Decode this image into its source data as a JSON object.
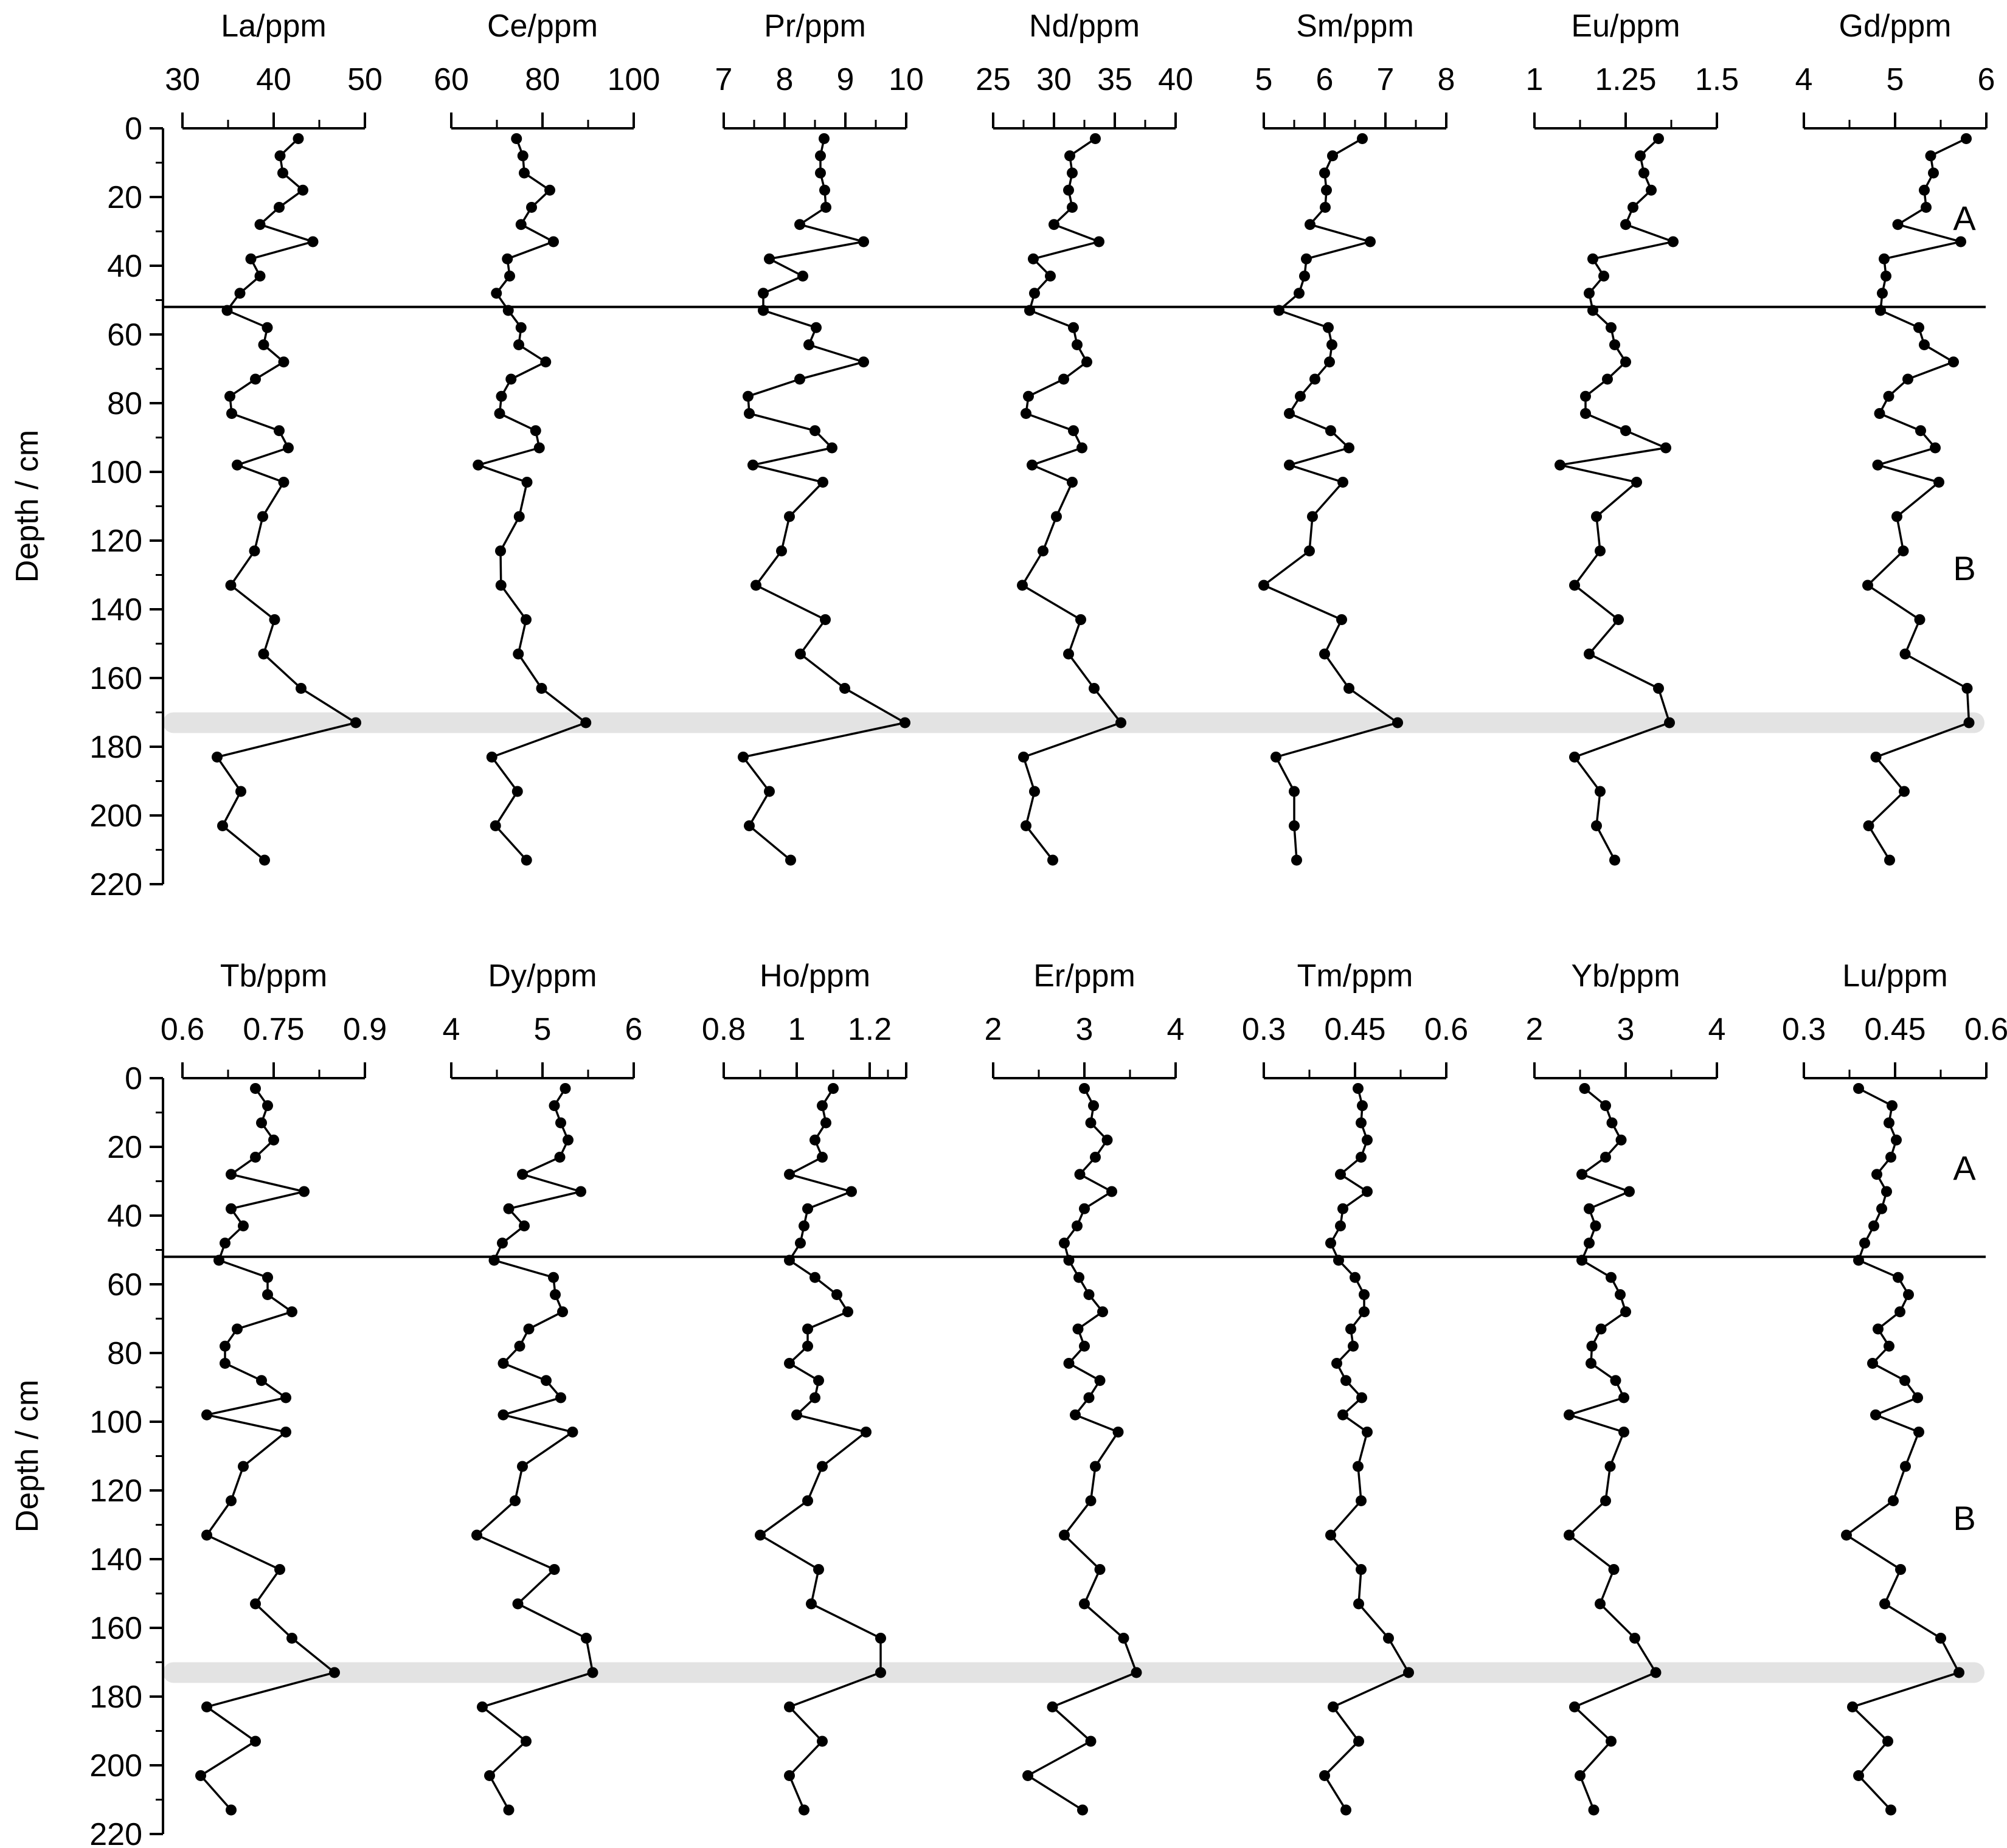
{
  "chart_data": [
    {
      "type": "line",
      "panel": "top",
      "depth_axis": {
        "label": "Depth / cm",
        "ticks": [
          "0",
          "20",
          "40",
          "60",
          "80",
          "100",
          "120",
          "140",
          "160",
          "180",
          "200",
          "220"
        ],
        "range": [
          0,
          220
        ],
        "inverted": true
      },
      "depths": [
        3,
        8,
        13,
        18,
        23,
        28,
        33,
        38,
        43,
        48,
        53,
        58,
        63,
        68,
        73,
        78,
        83,
        88,
        93,
        98,
        103,
        113,
        123,
        133,
        143,
        153,
        163,
        173,
        183,
        193,
        203,
        213
      ],
      "zones": [
        {
          "label": "A",
          "depth_range": [
            0,
            52
          ]
        },
        {
          "label": "B",
          "depth_range": [
            52,
            220
          ]
        }
      ],
      "zone_boundary_depth": 52,
      "highlight_band_depth": 173,
      "series": [
        {
          "name": "La/ppm",
          "xlim": [
            30,
            50
          ],
          "ticks": [
            "30",
            "40",
            "50"
          ],
          "values": [
            42.7,
            40.7,
            41.0,
            43.2,
            40.6,
            38.5,
            44.3,
            37.5,
            38.5,
            36.3,
            34.9,
            39.3,
            38.9,
            41.1,
            38.0,
            35.2,
            35.4,
            40.6,
            41.6,
            36.0,
            41.1,
            38.8,
            37.9,
            35.3,
            40.1,
            38.9,
            43.0,
            49.0,
            33.8,
            36.4,
            34.4,
            39.0
          ]
        },
        {
          "name": "Ce/ppm",
          "xlim": [
            60,
            100
          ],
          "ticks": [
            "60",
            "80",
            "100"
          ],
          "values": [
            74.3,
            75.7,
            76.0,
            81.6,
            77.6,
            75.3,
            82.4,
            72.3,
            72.8,
            69.9,
            72.5,
            75.3,
            74.8,
            80.7,
            73.1,
            71.0,
            70.6,
            78.5,
            79.3,
            65.9,
            76.6,
            74.9,
            70.8,
            70.9,
            76.4,
            74.7,
            79.8,
            89.5,
            68.9,
            74.5,
            69.7,
            76.5
          ]
        },
        {
          "name": "Pr/ppm",
          "xlim": [
            7,
            10
          ],
          "ticks": [
            "7",
            "8",
            "9",
            "10"
          ],
          "values": [
            8.65,
            8.59,
            8.59,
            8.66,
            8.68,
            8.25,
            9.3,
            7.75,
            8.3,
            7.65,
            7.65,
            8.52,
            8.4,
            9.3,
            8.25,
            7.4,
            7.42,
            8.5,
            8.78,
            7.48,
            8.63,
            8.08,
            7.95,
            7.53,
            8.67,
            8.26,
            8.99,
            9.98,
            7.32,
            7.75,
            7.42,
            8.1
          ]
        },
        {
          "name": "Nd/ppm",
          "xlim": [
            25,
            40
          ],
          "ticks": [
            "25",
            "30",
            "35",
            "40"
          ],
          "values": [
            33.4,
            31.3,
            31.5,
            31.2,
            31.5,
            30.0,
            33.7,
            28.3,
            29.7,
            28.4,
            28.0,
            31.6,
            31.9,
            32.7,
            30.8,
            27.9,
            27.7,
            31.6,
            32.3,
            28.2,
            31.5,
            30.2,
            29.1,
            27.4,
            32.2,
            31.2,
            33.3,
            35.5,
            27.5,
            28.4,
            27.7,
            29.9
          ]
        },
        {
          "name": "Sm/ppm",
          "xlim": [
            5,
            8
          ],
          "ticks": [
            "5",
            "6",
            "7",
            "8"
          ],
          "values": [
            6.62,
            6.13,
            6.0,
            6.03,
            6.01,
            5.76,
            6.75,
            5.7,
            5.67,
            5.58,
            5.25,
            6.06,
            6.12,
            6.08,
            5.84,
            5.6,
            5.42,
            6.1,
            6.4,
            5.42,
            6.3,
            5.8,
            5.75,
            5.0,
            6.28,
            6.0,
            6.4,
            7.2,
            5.2,
            5.5,
            5.5,
            5.54
          ]
        },
        {
          "name": "Eu/ppm",
          "xlim": [
            1,
            1.5
          ],
          "ticks": [
            "1",
            "1.25",
            "1.5"
          ],
          "values": [
            1.34,
            1.29,
            1.3,
            1.32,
            1.27,
            1.25,
            1.38,
            1.16,
            1.19,
            1.15,
            1.16,
            1.21,
            1.22,
            1.25,
            1.2,
            1.14,
            1.14,
            1.25,
            1.36,
            1.07,
            1.28,
            1.17,
            1.18,
            1.11,
            1.23,
            1.15,
            1.34,
            1.37,
            1.11,
            1.18,
            1.17,
            1.22
          ]
        },
        {
          "name": "Gd/ppm",
          "xlim": [
            4,
            6
          ],
          "ticks": [
            "4",
            "5",
            "6"
          ],
          "values": [
            5.78,
            5.39,
            5.42,
            5.32,
            5.34,
            5.03,
            5.72,
            4.88,
            4.9,
            4.86,
            4.84,
            5.26,
            5.32,
            5.64,
            5.14,
            4.93,
            4.83,
            5.28,
            5.44,
            4.81,
            5.48,
            5.02,
            5.09,
            4.7,
            5.27,
            5.11,
            5.79,
            5.81,
            4.79,
            5.1,
            4.71,
            4.94
          ]
        }
      ]
    },
    {
      "type": "line",
      "panel": "bottom",
      "depth_axis": {
        "label": "Depth / cm",
        "ticks": [
          "0",
          "20",
          "40",
          "60",
          "80",
          "100",
          "120",
          "140",
          "160",
          "180",
          "200",
          "220"
        ],
        "range": [
          0,
          220
        ],
        "inverted": true
      },
      "depths": [
        3,
        8,
        13,
        18,
        23,
        28,
        33,
        38,
        43,
        48,
        53,
        58,
        63,
        68,
        73,
        78,
        83,
        88,
        93,
        98,
        103,
        113,
        123,
        133,
        143,
        153,
        163,
        173,
        183,
        193,
        203,
        213
      ],
      "zones": [
        {
          "label": "A",
          "depth_range": [
            0,
            52
          ]
        },
        {
          "label": "B",
          "depth_range": [
            52,
            220
          ]
        }
      ],
      "zone_boundary_depth": 52,
      "highlight_band_depth": 173,
      "series": [
        {
          "name": "Tb/ppm",
          "xlim": [
            0.6,
            0.9
          ],
          "ticks": [
            "0.6",
            "0.75",
            "0.9"
          ],
          "values": [
            0.72,
            0.74,
            0.73,
            0.75,
            0.72,
            0.68,
            0.8,
            0.68,
            0.7,
            0.67,
            0.66,
            0.74,
            0.74,
            0.78,
            0.69,
            0.67,
            0.67,
            0.73,
            0.77,
            0.64,
            0.77,
            0.7,
            0.68,
            0.64,
            0.76,
            0.72,
            0.78,
            0.85,
            0.64,
            0.72,
            0.63,
            0.68
          ]
        },
        {
          "name": "Dy/ppm",
          "xlim": [
            4,
            6
          ],
          "ticks": [
            "4",
            "5",
            "6"
          ],
          "values": [
            5.25,
            5.13,
            5.2,
            5.28,
            5.19,
            4.78,
            5.42,
            4.63,
            4.8,
            4.56,
            4.47,
            5.12,
            5.14,
            5.22,
            4.85,
            4.75,
            4.57,
            5.04,
            5.2,
            4.57,
            5.33,
            4.78,
            4.7,
            4.28,
            5.13,
            4.73,
            5.48,
            5.55,
            4.34,
            4.82,
            4.42,
            4.63
          ]
        },
        {
          "name": "Ho/ppm",
          "xlim": [
            0.8,
            1.3
          ],
          "ticks": [
            "0.8",
            "1",
            "1.2"
          ],
          "values": [
            1.1,
            1.07,
            1.08,
            1.05,
            1.07,
            0.98,
            1.15,
            1.03,
            1.02,
            1.01,
            0.98,
            1.05,
            1.11,
            1.14,
            1.03,
            1.03,
            0.98,
            1.06,
            1.05,
            1.0,
            1.19,
            1.07,
            1.03,
            0.9,
            1.06,
            1.04,
            1.23,
            1.23,
            0.98,
            1.07,
            0.98,
            1.02
          ]
        },
        {
          "name": "Er/ppm",
          "xlim": [
            2,
            4
          ],
          "ticks": [
            "2",
            "3",
            "4"
          ],
          "values": [
            3.0,
            3.1,
            3.07,
            3.25,
            3.12,
            2.95,
            3.3,
            3.0,
            2.92,
            2.78,
            2.83,
            2.94,
            3.05,
            3.2,
            2.93,
            3.0,
            2.83,
            3.17,
            3.05,
            2.9,
            3.37,
            3.12,
            3.07,
            2.78,
            3.17,
            3.0,
            3.43,
            3.57,
            2.65,
            3.07,
            2.38,
            2.98
          ]
        },
        {
          "name": "Tm/ppm",
          "xlim": [
            0.3,
            0.6
          ],
          "ticks": [
            "0.3",
            "0.45",
            "0.6"
          ],
          "values": [
            0.455,
            0.462,
            0.46,
            0.47,
            0.46,
            0.426,
            0.47,
            0.43,
            0.426,
            0.41,
            0.423,
            0.45,
            0.465,
            0.465,
            0.443,
            0.447,
            0.42,
            0.435,
            0.461,
            0.43,
            0.47,
            0.455,
            0.46,
            0.41,
            0.46,
            0.456,
            0.505,
            0.538,
            0.414,
            0.456,
            0.4,
            0.435
          ]
        },
        {
          "name": "Yb/ppm",
          "xlim": [
            2,
            4
          ],
          "ticks": [
            "2",
            "3",
            "4"
          ],
          "values": [
            2.55,
            2.78,
            2.85,
            2.95,
            2.78,
            2.52,
            3.04,
            2.6,
            2.67,
            2.6,
            2.52,
            2.84,
            2.94,
            3.0,
            2.73,
            2.63,
            2.62,
            2.89,
            2.98,
            2.38,
            2.98,
            2.83,
            2.78,
            2.38,
            2.87,
            2.72,
            3.1,
            3.33,
            2.44,
            2.84,
            2.5,
            2.65
          ]
        },
        {
          "name": "Lu/ppm",
          "xlim": [
            0.3,
            0.6
          ],
          "ticks": [
            "0.3",
            "0.45",
            "0.6"
          ],
          "values": [
            0.39,
            0.445,
            0.44,
            0.452,
            0.443,
            0.42,
            0.436,
            0.428,
            0.415,
            0.4,
            0.39,
            0.455,
            0.472,
            0.458,
            0.422,
            0.44,
            0.413,
            0.466,
            0.487,
            0.418,
            0.489,
            0.467,
            0.447,
            0.37,
            0.459,
            0.433,
            0.525,
            0.555,
            0.38,
            0.438,
            0.39,
            0.443
          ]
        }
      ]
    }
  ]
}
